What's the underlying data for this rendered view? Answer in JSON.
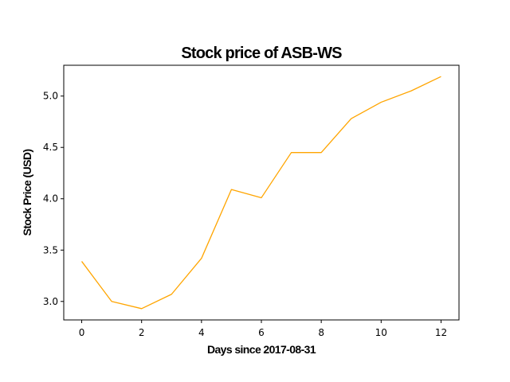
{
  "chart_data": {
    "type": "line",
    "title": "Stock price of ASB-WS",
    "xlabel": "Days since 2017-08-31",
    "ylabel": "Stock Price (USD)",
    "x": [
      0,
      1,
      2,
      3,
      4,
      5,
      6,
      7,
      8,
      9,
      10,
      11,
      12
    ],
    "series": [
      {
        "values": [
          3.39,
          3.0,
          2.93,
          3.07,
          3.42,
          4.09,
          4.01,
          4.45,
          4.45,
          4.78,
          4.94,
          5.05,
          5.19
        ],
        "color": "#FFA500"
      }
    ],
    "xlim": [
      -0.6,
      12.6
    ],
    "ylim": [
      2.82,
      5.3
    ],
    "xticks": [
      0,
      2,
      4,
      6,
      8,
      10,
      12
    ],
    "xtick_labels": [
      "0",
      "2",
      "4",
      "6",
      "8",
      "10",
      "12"
    ],
    "yticks": [
      3.0,
      3.5,
      4.0,
      4.5,
      5.0
    ],
    "ytick_labels": [
      "3.0",
      "3.5",
      "4.0",
      "4.5",
      "5.0"
    ],
    "grid": false,
    "legend": "none"
  }
}
